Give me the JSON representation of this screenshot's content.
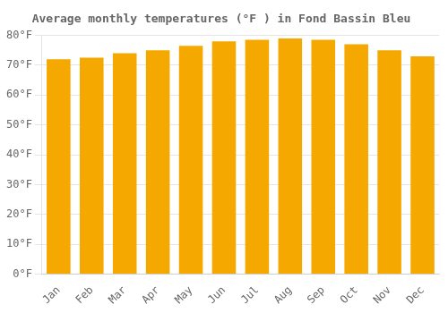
{
  "chart_data": {
    "type": "bar",
    "title": "Average monthly temperatures (°F ) in Fond Bassin Bleu",
    "categories": [
      "Jan",
      "Feb",
      "Mar",
      "Apr",
      "May",
      "Jun",
      "Jul",
      "Aug",
      "Sep",
      "Oct",
      "Nov",
      "Dec"
    ],
    "values": [
      72,
      72.5,
      74,
      75,
      76.5,
      78,
      78.5,
      79,
      78.5,
      77,
      75,
      73
    ],
    "color": "#F5A800",
    "ylim": [
      0,
      80
    ],
    "yticks": [
      {
        "value": 0,
        "label": "0°F"
      },
      {
        "value": 10,
        "label": "10°F"
      },
      {
        "value": 20,
        "label": "20°F"
      },
      {
        "value": 30,
        "label": "30°F"
      },
      {
        "value": 40,
        "label": "40°F"
      },
      {
        "value": 50,
        "label": "50°F"
      },
      {
        "value": 60,
        "label": "60°F"
      },
      {
        "value": 70,
        "label": "70°F"
      },
      {
        "value": 80,
        "label": "80°F"
      }
    ],
    "grid": true
  }
}
